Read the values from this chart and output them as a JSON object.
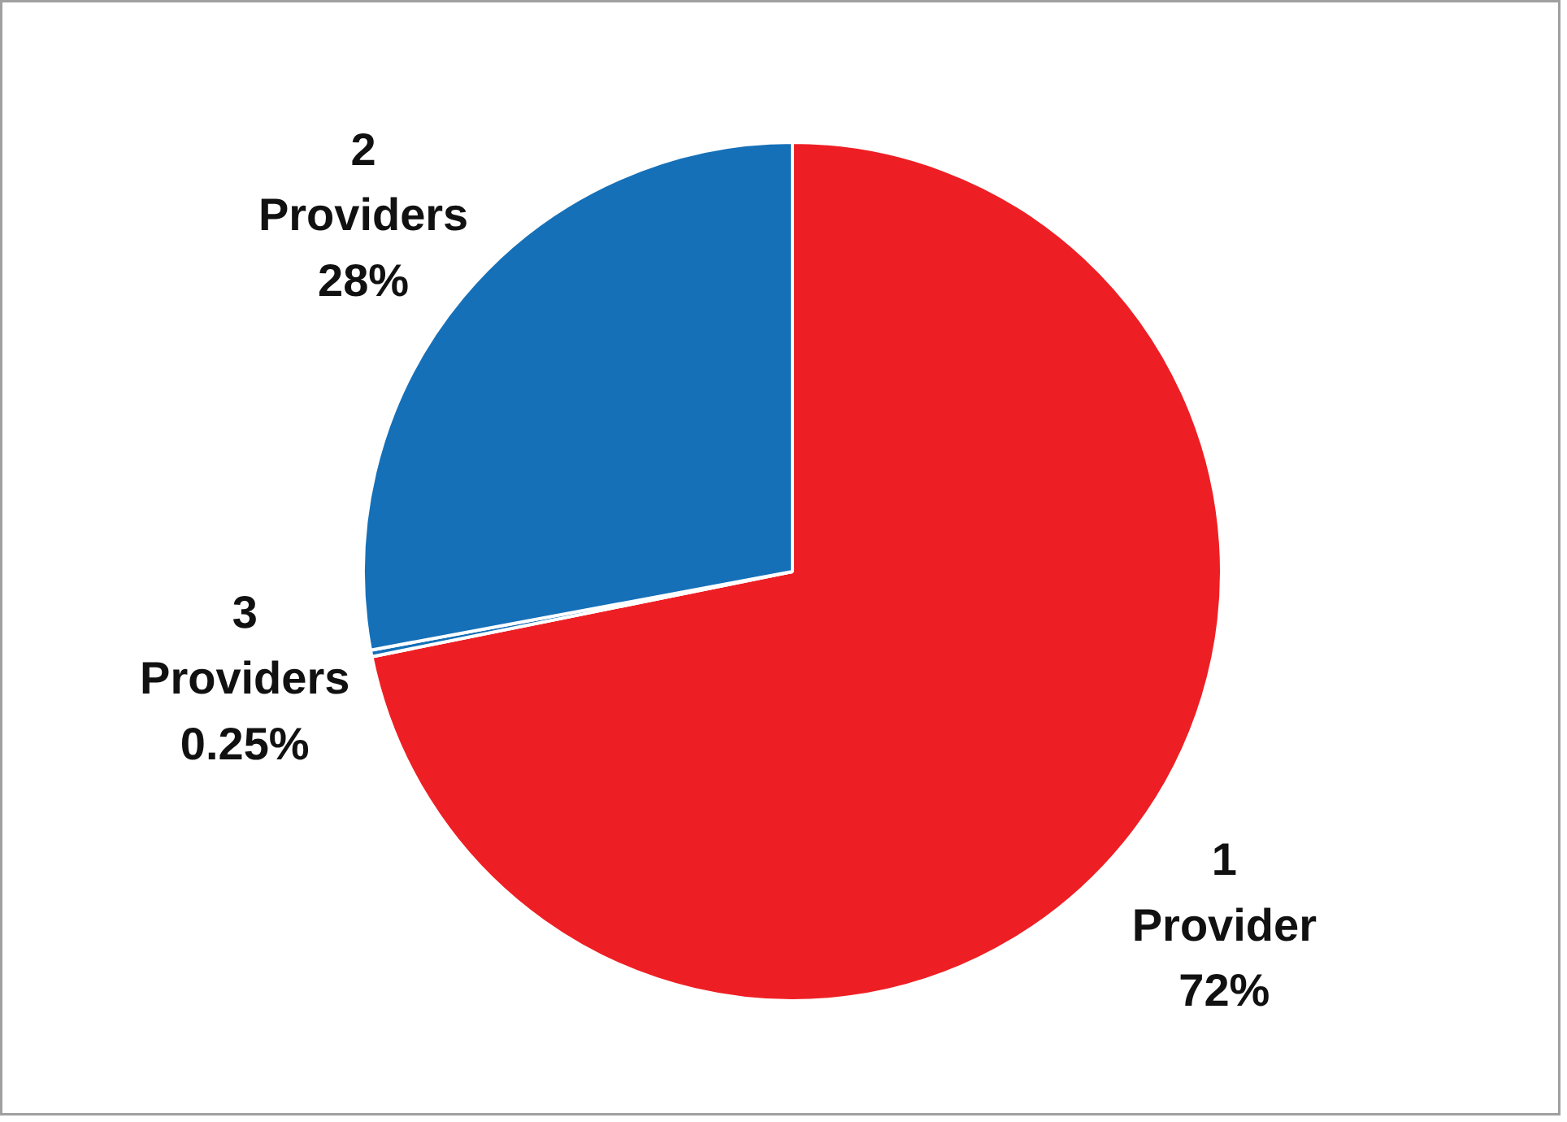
{
  "chart_data": {
    "type": "pie",
    "categories": [
      "1\nProvider",
      "3\nProviders",
      "2\nProviders"
    ],
    "values": [
      72,
      0.25,
      28
    ],
    "colors": [
      "#ee1f24",
      "#1570b8",
      "#1570b8"
    ],
    "value_labels": [
      "72%",
      "0.25%",
      "28%"
    ]
  }
}
